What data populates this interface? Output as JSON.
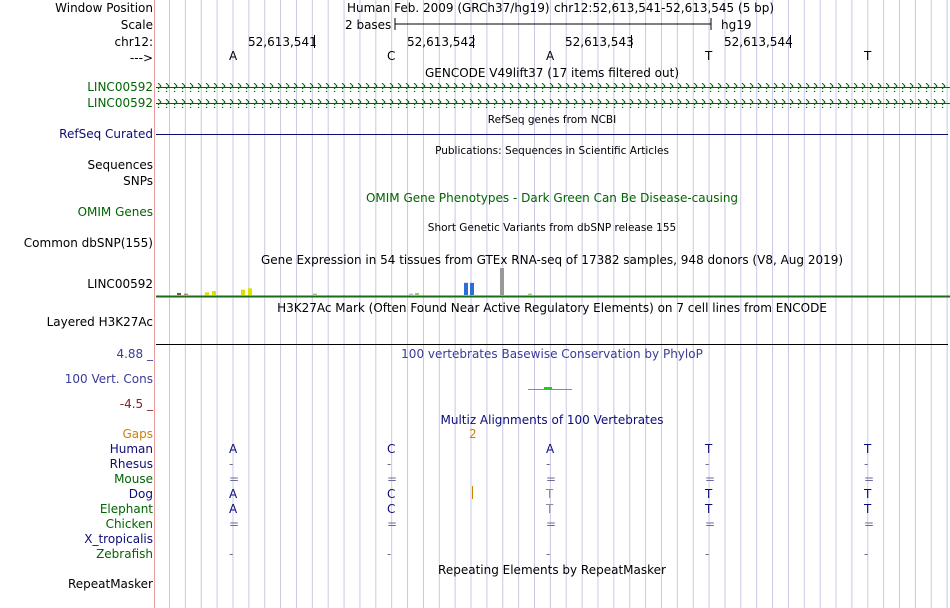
{
  "labels": {
    "window_position": "Window Position",
    "scale": "Scale",
    "chrom": "chr12:",
    "strand": "--->",
    "linc1": "LINC00592",
    "linc2": "LINC00592",
    "refseq": "RefSeq Curated",
    "sequences": "Sequences",
    "snps": "SNPs",
    "omim": "OMIM Genes",
    "common_dbsnp": "Common dbSNP(155)",
    "gtex_gene": "LINC00592",
    "h3k27ac": "Layered H3K27Ac",
    "cons_max": "4.88 _",
    "cons_label": "100 Vert. Cons",
    "cons_min": "-4.5 _",
    "gaps": "Gaps",
    "species": [
      "Human",
      "Rhesus",
      "Mouse",
      "Dog",
      "Elephant",
      "Chicken",
      "X_tropicalis",
      "Zebrafish"
    ],
    "repeatmasker": "RepeatMasker"
  },
  "header": {
    "assembly": "Human Feb. 2009 (GRCh37/hg19)",
    "position": "chr12:52,613,541-52,613,545 (5 bp)",
    "scale_text": "2 bases",
    "scale_db": "hg19",
    "coords": [
      "52,613,541",
      "52,613,542",
      "52,613,543",
      "52,613,544"
    ],
    "bases": [
      "A",
      "C",
      "A",
      "T",
      "T"
    ]
  },
  "tracks": {
    "gencode": "GENCODE V49lift37 (17 items filtered out)",
    "refseq": "RefSeq genes from NCBI",
    "publications": "Publications: Sequences in Scientific Articles",
    "omim": "OMIM Gene Phenotypes - Dark Green Can Be Disease-causing",
    "dbsnp": "Short Genetic Variants from dbSNP release 155",
    "gtex": "Gene Expression in 54 tissues from GTEx RNA-seq of 17382 samples, 948 donors (V8, Aug 2019)",
    "h3k27ac": "H3K27Ac Mark (Often Found Near Active Regulatory Elements) on 7 cell lines from ENCODE",
    "phylop": "100 vertebrates Basewise Conservation by PhyloP",
    "multiz": "Multiz Alignments of 100 Vertebrates",
    "gap_count": "2",
    "repeatmasker": "Repeating Elements by RepeatMasker"
  },
  "alignment": [
    [
      "A",
      "C",
      "A",
      "T",
      "T"
    ],
    [
      "-",
      "-",
      "-",
      "-",
      "-"
    ],
    [
      "=",
      "=",
      "=",
      "=",
      "="
    ],
    [
      "A",
      "C",
      "T",
      "T",
      "T"
    ],
    [
      "A",
      "C",
      "T",
      "T",
      "T"
    ],
    [
      "=",
      "=",
      "=",
      "=",
      "="
    ],
    [
      "",
      "",
      "",
      "",
      ""
    ],
    [
      "-",
      "-",
      "-",
      "-",
      "-"
    ]
  ],
  "gtex_values": [
    {
      "color": "#6b5a3a",
      "value": 1.5
    },
    {
      "color": "#c07a7a",
      "value": 1
    },
    {
      "color": "#e0e000",
      "value": 2
    },
    {
      "color": "#e0e000",
      "value": 3
    },
    {
      "color": "#e0e000",
      "value": 4
    },
    {
      "color": "#e0e000",
      "value": 5
    },
    {
      "color": "#99cc66",
      "value": 1
    },
    {
      "color": "#bbbbbb",
      "value": 1
    },
    {
      "color": "#99cc66",
      "value": 1.5
    },
    {
      "color": "#2b6fd6",
      "value": 9
    },
    {
      "color": "#2b6fd6",
      "value": 9
    },
    {
      "color": "#999999",
      "value": 20
    },
    {
      "color": "#99cc66",
      "value": 1
    }
  ],
  "colors": {
    "label_green": "#006400",
    "gencode_green": "#006400",
    "refseq_navy": "#0c0c78",
    "gaps_orange": "#d08000"
  }
}
